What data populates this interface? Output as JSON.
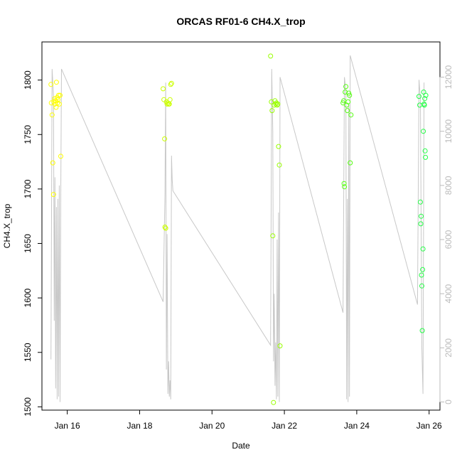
{
  "chart_data": {
    "type": "scatter",
    "title": "ORCAS RF01-6 CH4.X_trop",
    "xlabel": "Date",
    "ylabel": "CH4.X_trop",
    "x_ticks": [
      {
        "day": 16,
        "label": "Jan 16"
      },
      {
        "day": 18,
        "label": "Jan 18"
      },
      {
        "day": 20,
        "label": "Jan 20"
      },
      {
        "day": 22,
        "label": "Jan 22"
      },
      {
        "day": 24,
        "label": "Jan 24"
      },
      {
        "day": 26,
        "label": "Jan 26"
      }
    ],
    "xlim": [
      15.3,
      26.3
    ],
    "ylim": [
      1497,
      1835
    ],
    "y_ticks": [
      1500,
      1550,
      1600,
      1650,
      1700,
      1750,
      1800
    ],
    "y2lim": [
      -300,
      13300
    ],
    "y2_ticks": [
      0,
      2000,
      4000,
      6000,
      8000,
      10000,
      12000
    ],
    "y2_color": "#bbbbbb",
    "altitude_line": {
      "color": "#c8c8c8",
      "points": [
        [
          15.55,
          1575
        ],
        [
          15.58,
          12300
        ],
        [
          15.62,
          11300
        ],
        [
          15.64,
          3000
        ],
        [
          15.66,
          8300
        ],
        [
          15.68,
          500
        ],
        [
          15.7,
          7200
        ],
        [
          15.72,
          100
        ],
        [
          15.74,
          7500
        ],
        [
          15.76,
          200
        ],
        [
          15.78,
          8000
        ],
        [
          15.8,
          0
        ],
        [
          15.82,
          7600
        ],
        [
          15.84,
          12300
        ],
        [
          18.65,
          3700
        ],
        [
          18.7,
          7700
        ],
        [
          18.72,
          11800
        ],
        [
          18.74,
          1200
        ],
        [
          18.76,
          6200
        ],
        [
          18.78,
          300
        ],
        [
          18.8,
          1500
        ],
        [
          18.82,
          200
        ],
        [
          18.84,
          800
        ],
        [
          18.86,
          100
        ],
        [
          18.88,
          9100
        ],
        [
          18.9,
          8200
        ],
        [
          18.92,
          7800
        ],
        [
          21.62,
          2100
        ],
        [
          21.65,
          12300
        ],
        [
          21.68,
          10000
        ],
        [
          21.7,
          1500
        ],
        [
          21.72,
          4000
        ],
        [
          21.74,
          600
        ],
        [
          21.76,
          2200
        ],
        [
          21.78,
          100
        ],
        [
          21.8,
          6000
        ],
        [
          21.82,
          200
        ],
        [
          21.84,
          7000
        ],
        [
          21.86,
          0
        ],
        [
          21.88,
          12000
        ],
        [
          23.62,
          3300
        ],
        [
          23.66,
          12000
        ],
        [
          23.7,
          11500
        ],
        [
          23.72,
          100
        ],
        [
          23.74,
          7500
        ],
        [
          23.76,
          0
        ],
        [
          23.78,
          11000
        ],
        [
          23.8,
          200
        ],
        [
          23.82,
          12800
        ],
        [
          25.68,
          3600
        ],
        [
          25.72,
          11900
        ],
        [
          25.76,
          11200
        ],
        [
          25.8,
          2000
        ],
        [
          25.83,
          300
        ],
        [
          25.86,
          11800
        ]
      ]
    },
    "series": [
      {
        "color": "#ffff00",
        "points": [
          [
            15.55,
            1796
          ],
          [
            15.56,
            1779
          ],
          [
            15.58,
            1768
          ],
          [
            15.6,
            1724
          ],
          [
            15.62,
            1695
          ],
          [
            15.63,
            1780
          ],
          [
            15.65,
            1783
          ],
          [
            15.66,
            1778
          ],
          [
            15.68,
            1781
          ],
          [
            15.69,
            1775
          ],
          [
            15.7,
            1798
          ],
          [
            15.72,
            1784
          ],
          [
            15.73,
            1779
          ],
          [
            15.74,
            1782
          ],
          [
            15.76,
            1786
          ],
          [
            15.78,
            1778
          ],
          [
            15.8,
            1786
          ],
          [
            15.82,
            1730
          ]
        ]
      },
      {
        "color": "#ccff00",
        "points": [
          [
            18.65,
            1792
          ],
          [
            18.67,
            1782
          ],
          [
            18.69,
            1746
          ],
          [
            18.7,
            1665
          ],
          [
            18.72,
            1664
          ],
          [
            18.74,
            1780
          ],
          [
            18.76,
            1778
          ],
          [
            18.78,
            1779
          ],
          [
            18.8,
            1778
          ],
          [
            18.82,
            1778
          ],
          [
            18.84,
            1782
          ],
          [
            18.86,
            1796
          ],
          [
            18.88,
            1797
          ]
        ]
      },
      {
        "color": "#99ff00",
        "points": [
          [
            21.62,
            1822
          ],
          [
            21.64,
            1780
          ],
          [
            21.66,
            1772
          ],
          [
            21.68,
            1657
          ],
          [
            21.7,
            1504
          ],
          [
            21.72,
            1777
          ],
          [
            21.74,
            1781
          ],
          [
            21.76,
            1778
          ],
          [
            21.78,
            1779
          ],
          [
            21.8,
            1777
          ],
          [
            21.82,
            1778
          ],
          [
            21.84,
            1739
          ],
          [
            21.86,
            1722
          ],
          [
            21.88,
            1556
          ]
        ]
      },
      {
        "color": "#55ff11",
        "points": [
          [
            23.62,
            1779
          ],
          [
            23.64,
            1781
          ],
          [
            23.65,
            1705
          ],
          [
            23.66,
            1702
          ],
          [
            23.68,
            1789
          ],
          [
            23.7,
            1794
          ],
          [
            23.72,
            1777
          ],
          [
            23.74,
            1772
          ],
          [
            23.76,
            1780
          ],
          [
            23.78,
            1788
          ],
          [
            23.8,
            1786
          ],
          [
            23.82,
            1724
          ],
          [
            23.84,
            1768
          ]
        ]
      },
      {
        "color": "#22ff44",
        "points": [
          [
            25.72,
            1785
          ],
          [
            25.74,
            1777
          ],
          [
            25.76,
            1688
          ],
          [
            25.77,
            1668
          ],
          [
            25.78,
            1675
          ],
          [
            25.79,
            1621
          ],
          [
            25.8,
            1611
          ],
          [
            25.81,
            1570
          ],
          [
            25.82,
            1626
          ],
          [
            25.83,
            1645
          ],
          [
            25.84,
            1753
          ],
          [
            25.85,
            1789
          ],
          [
            25.86,
            1778
          ],
          [
            25.87,
            1777
          ],
          [
            25.88,
            1783
          ],
          [
            25.89,
            1735
          ],
          [
            25.9,
            1729
          ],
          [
            25.91,
            1786
          ]
        ]
      }
    ]
  }
}
